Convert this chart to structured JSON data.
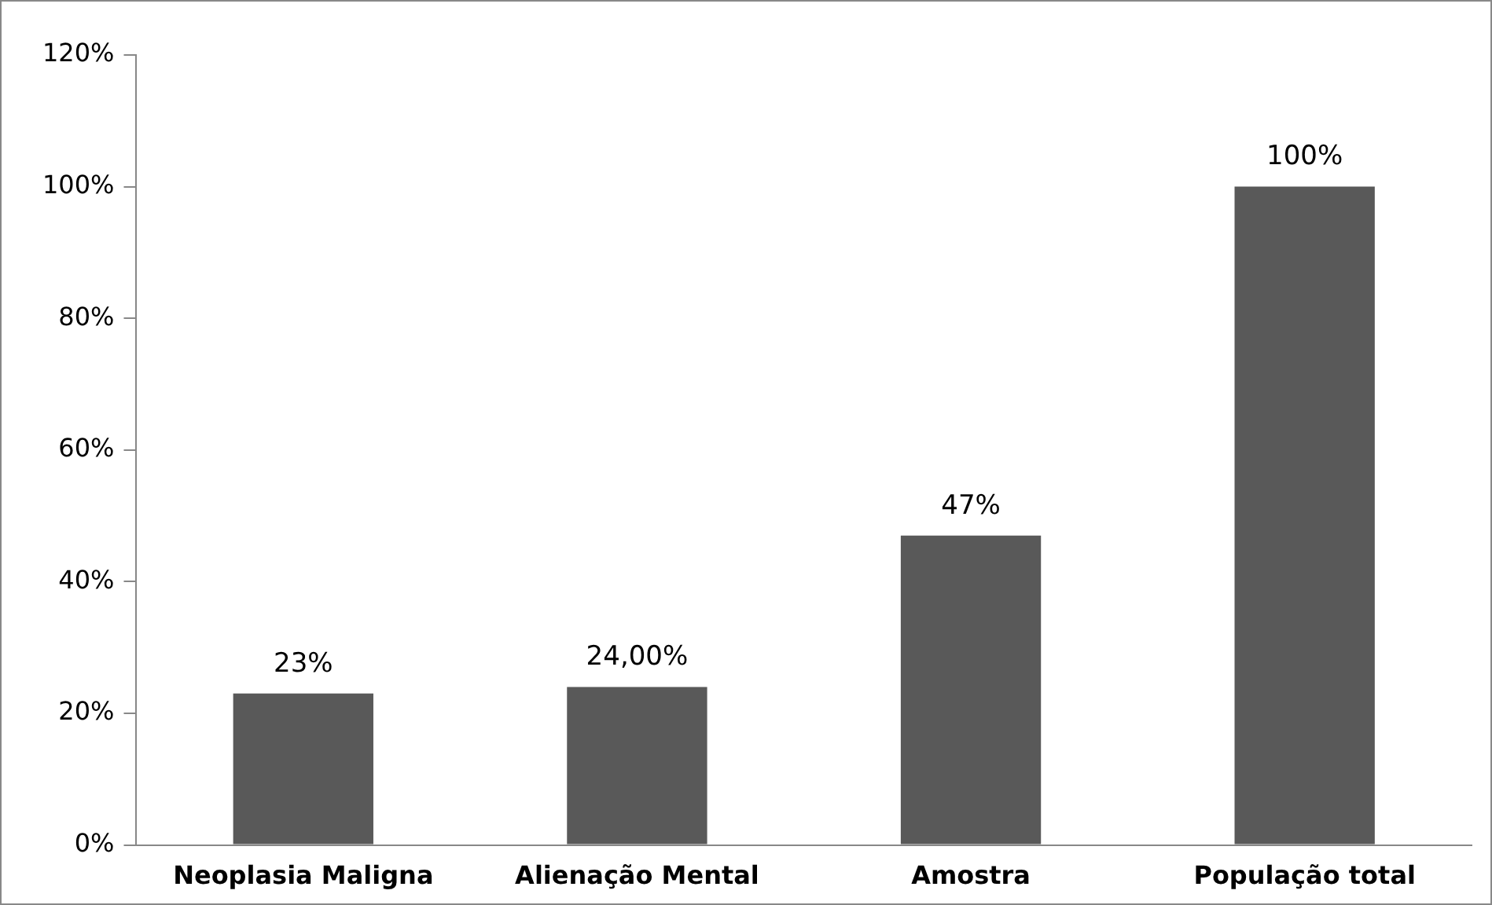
{
  "chart_data": {
    "type": "bar",
    "categories": [
      "Neoplasia Maligna",
      "Alienação Mental",
      "Amostra",
      "População total"
    ],
    "values": [
      23,
      24,
      47,
      100
    ],
    "value_labels": [
      "23%",
      "24,00%",
      "47%",
      "100%"
    ],
    "color": "#595959",
    "ylim": [
      0,
      120
    ],
    "yticks": [
      {
        "value": 0,
        "label": "0%"
      },
      {
        "value": 20,
        "label": "20%"
      },
      {
        "value": 40,
        "label": "40%"
      },
      {
        "value": 60,
        "label": "60%"
      },
      {
        "value": 80,
        "label": "80%"
      },
      {
        "value": 100,
        "label": "100%"
      },
      {
        "value": 120,
        "label": "120%"
      }
    ],
    "grid": false
  }
}
